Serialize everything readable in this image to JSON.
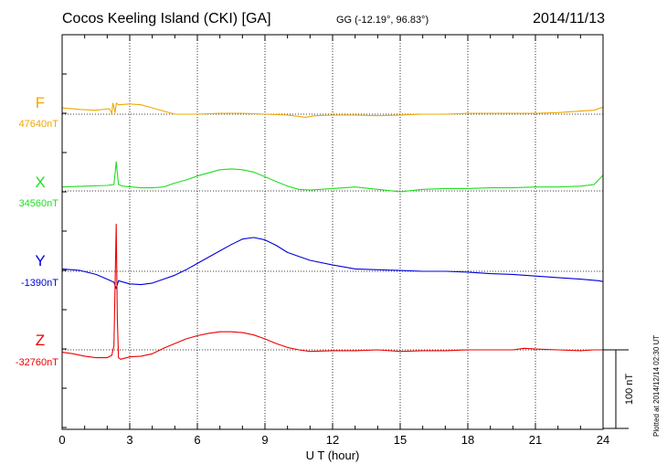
{
  "header": {
    "title": "Cocos Keeling Island (CKI)  [GA]",
    "coords": "GG (-12.19°,  96.83°)",
    "date": "2014/11/13"
  },
  "plotted_note": "Plotted at 2014/12/14 02:30 UT",
  "chart_data": {
    "type": "line",
    "xlabel": "U T (hour)",
    "xlim": [
      0,
      24
    ],
    "xticks": [
      0,
      3,
      6,
      9,
      12,
      15,
      18,
      21,
      24
    ],
    "scale_bar_label": "100 nT",
    "grid": true,
    "series": [
      {
        "name": "F",
        "baseline_label": "47640nT",
        "color": "#f0a800",
        "points": [
          [
            0,
            -8
          ],
          [
            0.8,
            -6
          ],
          [
            1.5,
            -5
          ],
          [
            2.1,
            -7
          ],
          [
            2.2,
            -1
          ],
          [
            2.25,
            -14
          ],
          [
            2.35,
            -2
          ],
          [
            2.4,
            -14
          ],
          [
            2.5,
            -12
          ],
          [
            3,
            -13
          ],
          [
            3.5,
            -12
          ],
          [
            4,
            -8
          ],
          [
            4.5,
            -4
          ],
          [
            5,
            0
          ],
          [
            6,
            0
          ],
          [
            7,
            -1
          ],
          [
            8,
            -1
          ],
          [
            9,
            0
          ],
          [
            10,
            1
          ],
          [
            10.8,
            4
          ],
          [
            11.2,
            2
          ],
          [
            12,
            1
          ],
          [
            13,
            1
          ],
          [
            14,
            2
          ],
          [
            15,
            1
          ],
          [
            16,
            0
          ],
          [
            17,
            0
          ],
          [
            18,
            -1
          ],
          [
            19,
            -1
          ],
          [
            20,
            -1
          ],
          [
            21,
            -1
          ],
          [
            22,
            -2
          ],
          [
            23,
            -4
          ],
          [
            23.6,
            -5
          ],
          [
            24,
            -9
          ]
        ]
      },
      {
        "name": "X",
        "baseline_label": "34560nT",
        "color": "#22dd22",
        "points": [
          [
            0,
            -5
          ],
          [
            1,
            -6
          ],
          [
            2,
            -7
          ],
          [
            2.3,
            -8
          ],
          [
            2.4,
            -37
          ],
          [
            2.5,
            -8
          ],
          [
            2.7,
            -6
          ],
          [
            3.5,
            -4
          ],
          [
            4,
            -4
          ],
          [
            4.5,
            -5
          ],
          [
            5,
            -10
          ],
          [
            5.5,
            -14
          ],
          [
            6,
            -19
          ],
          [
            6.5,
            -23
          ],
          [
            7,
            -27
          ],
          [
            7.5,
            -28
          ],
          [
            8,
            -27
          ],
          [
            8.5,
            -24
          ],
          [
            9,
            -18
          ],
          [
            9.5,
            -12
          ],
          [
            10,
            -6
          ],
          [
            10.5,
            -2
          ],
          [
            11,
            -1
          ],
          [
            12,
            -3
          ],
          [
            13,
            -5
          ],
          [
            14,
            -2
          ],
          [
            15,
            1
          ],
          [
            16,
            -2
          ],
          [
            17,
            -3
          ],
          [
            18,
            -3
          ],
          [
            19,
            -4
          ],
          [
            20,
            -4
          ],
          [
            21,
            -5
          ],
          [
            22,
            -5
          ],
          [
            23,
            -6
          ],
          [
            23.6,
            -8
          ],
          [
            24,
            -20
          ]
        ]
      },
      {
        "name": "Y",
        "baseline_label": "-1390nT",
        "color": "#0000dd",
        "points": [
          [
            0,
            -3
          ],
          [
            0.8,
            -1
          ],
          [
            1.5,
            4
          ],
          [
            2,
            10
          ],
          [
            2.3,
            14
          ],
          [
            2.4,
            22
          ],
          [
            2.5,
            12
          ],
          [
            3,
            16
          ],
          [
            3.5,
            17
          ],
          [
            4,
            15
          ],
          [
            4.5,
            10
          ],
          [
            5,
            5
          ],
          [
            5.5,
            -2
          ],
          [
            6,
            -10
          ],
          [
            6.5,
            -18
          ],
          [
            7,
            -26
          ],
          [
            7.5,
            -34
          ],
          [
            8,
            -41
          ],
          [
            8.5,
            -43
          ],
          [
            9,
            -40
          ],
          [
            9.5,
            -33
          ],
          [
            10,
            -24
          ],
          [
            11,
            -14
          ],
          [
            12,
            -8
          ],
          [
            13,
            -3
          ],
          [
            14,
            -2
          ],
          [
            15,
            -1
          ],
          [
            16,
            0
          ],
          [
            17,
            0
          ],
          [
            18,
            1
          ],
          [
            19,
            3
          ],
          [
            20,
            4
          ],
          [
            21,
            6
          ],
          [
            22,
            8
          ],
          [
            23,
            10
          ],
          [
            23.8,
            12
          ],
          [
            24,
            13
          ]
        ]
      },
      {
        "name": "Z",
        "baseline_label": "-32760nT",
        "color": "#ee0000",
        "points": [
          [
            0,
            3
          ],
          [
            0.5,
            5
          ],
          [
            1,
            8
          ],
          [
            1.5,
            10
          ],
          [
            2,
            10
          ],
          [
            2.2,
            7
          ],
          [
            2.3,
            -5
          ],
          [
            2.4,
            -160
          ],
          [
            2.45,
            -40
          ],
          [
            2.5,
            10
          ],
          [
            2.6,
            12
          ],
          [
            3,
            9
          ],
          [
            3.5,
            8
          ],
          [
            4,
            5
          ],
          [
            4.5,
            -2
          ],
          [
            5,
            -8
          ],
          [
            5.5,
            -14
          ],
          [
            6,
            -18
          ],
          [
            6.5,
            -21
          ],
          [
            7,
            -23
          ],
          [
            7.5,
            -23
          ],
          [
            8,
            -22
          ],
          [
            8.5,
            -19
          ],
          [
            9,
            -14
          ],
          [
            9.5,
            -8
          ],
          [
            10,
            -3
          ],
          [
            10.5,
            0
          ],
          [
            11,
            2
          ],
          [
            12,
            1
          ],
          [
            13,
            1
          ],
          [
            14,
            0
          ],
          [
            15,
            2
          ],
          [
            16,
            1
          ],
          [
            17,
            1
          ],
          [
            18,
            0
          ],
          [
            19,
            0
          ],
          [
            20,
            0
          ],
          [
            20.5,
            -2
          ],
          [
            21,
            -1
          ],
          [
            22,
            0
          ],
          [
            23,
            1
          ],
          [
            23.6,
            0
          ],
          [
            24,
            0
          ]
        ]
      }
    ]
  }
}
